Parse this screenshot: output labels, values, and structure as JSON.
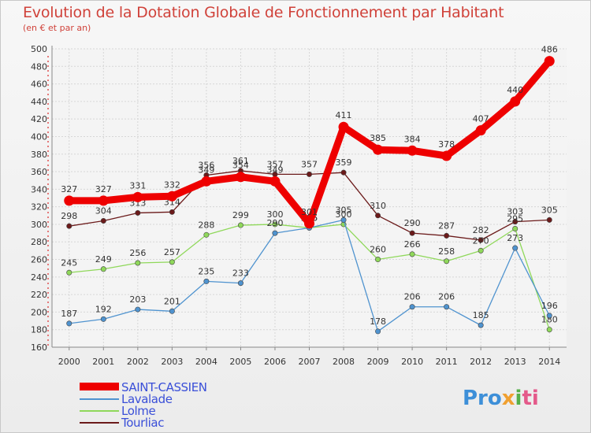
{
  "title": "Evolution de la Dotation Globale de Fonctionnement par Habitant",
  "subtitle": "(en € et par an)",
  "logo": {
    "p1": "Pro",
    "p2": "x",
    "p3": "i",
    "p4": "ti"
  },
  "chart_data": {
    "type": "line",
    "title": "Evolution de la Dotation Globale de Fonctionnement par Habitant",
    "subtitle": "(en € et par an)",
    "x": [
      2000,
      2001,
      2002,
      2003,
      2004,
      2005,
      2006,
      2007,
      2008,
      2009,
      2010,
      2011,
      2012,
      2013,
      2014
    ],
    "ylim": [
      160,
      500
    ],
    "yticks": [
      160,
      180,
      200,
      220,
      240,
      260,
      280,
      300,
      320,
      340,
      360,
      380,
      400,
      420,
      440,
      460,
      480,
      500
    ],
    "grid": true,
    "legend": "bottom-left",
    "series": [
      {
        "name": "Tourliac",
        "color": "#6b1a1a",
        "values": [
          298,
          304,
          313,
          314,
          356,
          361,
          357,
          357,
          359,
          310,
          290,
          287,
          282,
          303,
          305
        ],
        "labels": [
          "298",
          "304",
          "313",
          "314",
          "356",
          "361",
          "357",
          "357",
          "359",
          "310",
          "290",
          "287",
          "282",
          "303",
          "305"
        ]
      },
      {
        "name": "Lolme",
        "color": "#8fd85a",
        "values": [
          245,
          249,
          256,
          257,
          288,
          299,
          300,
          296,
          300,
          260,
          266,
          258,
          270,
          295,
          180
        ],
        "labels": [
          "245",
          "249",
          "256",
          "257",
          "288",
          "299",
          "300",
          "296",
          "300",
          "260",
          "266",
          "258",
          "270",
          "295",
          "180"
        ]
      },
      {
        "name": "Lavalade",
        "color": "#4f93cf",
        "values": [
          187,
          192,
          203,
          201,
          235,
          233,
          290,
          296,
          305,
          178,
          206,
          206,
          185,
          273,
          196
        ],
        "labels": [
          "187",
          "192",
          "203",
          "201",
          "235",
          "233",
          "290",
          "296",
          "305",
          "178",
          "206",
          "206",
          "185",
          "273",
          "196"
        ]
      },
      {
        "name": "SAINT-CASSIEN",
        "color": "#ee0000",
        "values": [
          327,
          327,
          331,
          332,
          349,
          354,
          349,
          301,
          411,
          385,
          384,
          378,
          407,
          440,
          486
        ],
        "labels": [
          "327",
          "327",
          "331",
          "332",
          "349",
          "354",
          "349",
          "301",
          "411",
          "385",
          "384",
          "378",
          "407",
          "440",
          "486"
        ]
      }
    ]
  },
  "legend": [
    {
      "name": "SAINT-CASSIEN",
      "color": "#ee0000"
    },
    {
      "name": "Lavalade",
      "color": "#4f93cf"
    },
    {
      "name": "Lolme",
      "color": "#8fd85a"
    },
    {
      "name": "Tourliac",
      "color": "#6b1a1a"
    }
  ]
}
